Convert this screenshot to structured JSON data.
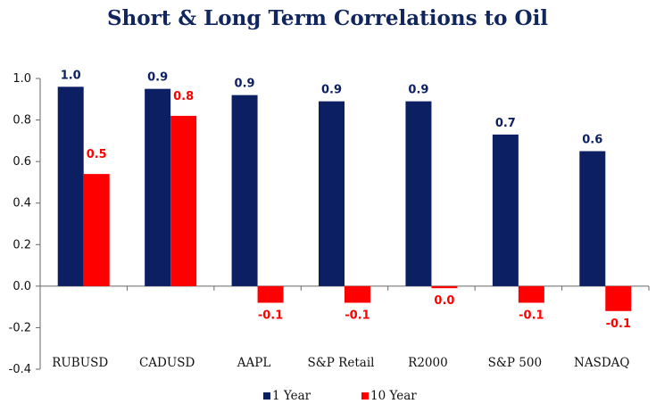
{
  "chart_data": {
    "type": "bar",
    "title": "Short & Long Term Correlations to Oil",
    "categories": [
      "RUBUSD",
      "CADUSD",
      "AAPL",
      "S&P Retail",
      "R2000",
      "S&P 500",
      "NASDAQ"
    ],
    "series": [
      {
        "name": "1 Year",
        "color": "#0d1f63",
        "values": [
          0.96,
          0.95,
          0.92,
          0.89,
          0.89,
          0.73,
          0.65
        ],
        "labels": [
          "1.0",
          "0.9",
          "0.9",
          "0.9",
          "0.9",
          "0.7",
          "0.6"
        ]
      },
      {
        "name": "10 Year",
        "color": "#ff0000",
        "values": [
          0.54,
          0.82,
          -0.08,
          -0.08,
          -0.01,
          -0.08,
          -0.12
        ],
        "labels": [
          "0.5",
          "0.8",
          "-0.1",
          "-0.1",
          "0.0",
          "-0.1",
          "-0.1"
        ]
      }
    ],
    "ylim": [
      -0.4,
      1.0
    ],
    "yticks": [
      "1.0",
      "0.8",
      "0.6",
      "0.4",
      "0.2",
      "0.0",
      "-0.2",
      "-0.4"
    ],
    "ytick_values": [
      1.0,
      0.8,
      0.6,
      0.4,
      0.2,
      0.0,
      -0.2,
      -0.4
    ],
    "grid": false,
    "legend_position": "bottom"
  }
}
